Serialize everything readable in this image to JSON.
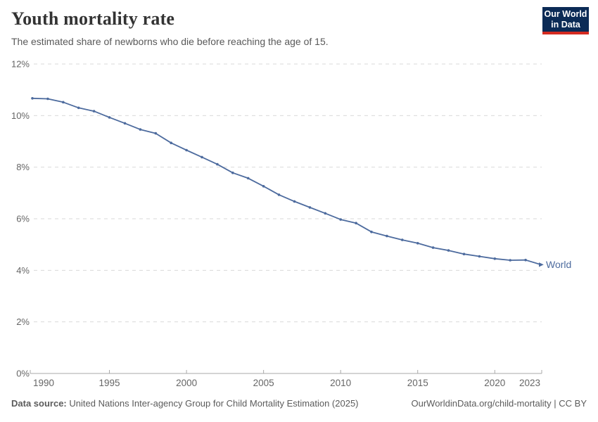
{
  "chart_data": {
    "type": "line",
    "title": "Youth mortality rate",
    "subtitle": "The estimated share of newborns who die before reaching the age of 15.",
    "x": [
      1990,
      1991,
      1992,
      1993,
      1994,
      1995,
      1996,
      1997,
      1998,
      1999,
      2000,
      2001,
      2002,
      2003,
      2004,
      2005,
      2006,
      2007,
      2008,
      2009,
      2010,
      2011,
      2012,
      2013,
      2014,
      2015,
      2016,
      2017,
      2018,
      2019,
      2020,
      2021,
      2022,
      2023
    ],
    "series": [
      {
        "name": "World",
        "color": "#4d6b9e",
        "values": [
          10.67,
          10.65,
          10.52,
          10.3,
          10.17,
          9.93,
          9.7,
          9.46,
          9.31,
          8.94,
          8.66,
          8.39,
          8.11,
          7.78,
          7.57,
          7.26,
          6.93,
          6.67,
          6.44,
          6.21,
          5.97,
          5.83,
          5.49,
          5.33,
          5.18,
          5.05,
          4.88,
          4.77,
          4.63,
          4.54,
          4.45,
          4.39,
          4.4,
          4.22
        ]
      }
    ],
    "ylim": [
      0,
      12
    ],
    "yticks": [
      0,
      2,
      4,
      6,
      8,
      10,
      12
    ],
    "ytick_suffix": "%",
    "xticks": [
      1990,
      1995,
      2000,
      2005,
      2010,
      2015,
      2020,
      2023
    ],
    "grid": true,
    "legend_position": "end-of-line-label",
    "end_label": "World"
  },
  "logo": {
    "line1": "Our World",
    "line2": "in Data",
    "bg_color": "#0b2b56",
    "bar_color": "#d42b21"
  },
  "footer": {
    "source_label": "Data source:",
    "source_text": "United Nations Inter-agency Group for Child Mortality Estimation (2025)",
    "credit": "OurWorldinData.org/child-mortality | CC BY"
  },
  "colors": {
    "line": "#4d6b9e",
    "grid": "#d9d9d9",
    "axis": "#a8a8a8",
    "tick_label": "#666666",
    "title": "#333333",
    "subtitle": "#595959",
    "footer": "#5b5b5b"
  }
}
